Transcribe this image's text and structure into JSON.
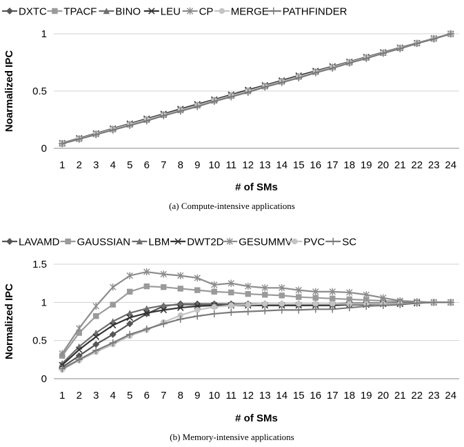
{
  "chart_data": [
    {
      "type": "line",
      "caption": "(a) Compute-intensive applications",
      "xlabel": "# of SMs",
      "ylabel": "Noarmalized IPC",
      "ylim": [
        0,
        1
      ],
      "yticks": [
        0,
        0.5,
        1
      ],
      "ytick_labels": [
        "0",
        "0.5",
        "1"
      ],
      "x": [
        1,
        2,
        3,
        4,
        5,
        6,
        7,
        8,
        9,
        10,
        11,
        12,
        13,
        14,
        15,
        16,
        17,
        18,
        19,
        20,
        21,
        22,
        23,
        24
      ],
      "grid": "horizontal",
      "legend_position": "top",
      "series": [
        {
          "name": "DXTC",
          "marker": "diamond",
          "color": "#555555",
          "values": [
            0.042,
            0.083,
            0.125,
            0.167,
            0.208,
            0.25,
            0.292,
            0.333,
            0.375,
            0.417,
            0.458,
            0.5,
            0.542,
            0.583,
            0.625,
            0.667,
            0.708,
            0.75,
            0.792,
            0.833,
            0.875,
            0.917,
            0.958,
            1.0
          ]
        },
        {
          "name": "TPACF",
          "marker": "square",
          "color": "#9a9a9a",
          "values": [
            0.042,
            0.083,
            0.125,
            0.167,
            0.208,
            0.25,
            0.292,
            0.333,
            0.375,
            0.417,
            0.458,
            0.5,
            0.542,
            0.583,
            0.625,
            0.667,
            0.708,
            0.75,
            0.792,
            0.833,
            0.875,
            0.917,
            0.958,
            1.0
          ]
        },
        {
          "name": "BINO",
          "marker": "triangle",
          "color": "#6e6e6e",
          "values": [
            0.042,
            0.083,
            0.125,
            0.167,
            0.208,
            0.25,
            0.292,
            0.333,
            0.375,
            0.417,
            0.458,
            0.5,
            0.542,
            0.583,
            0.625,
            0.667,
            0.708,
            0.75,
            0.792,
            0.833,
            0.875,
            0.917,
            0.958,
            1.0
          ]
        },
        {
          "name": "LEU",
          "marker": "x",
          "color": "#333333",
          "values": [
            0.045,
            0.088,
            0.13,
            0.172,
            0.215,
            0.258,
            0.3,
            0.343,
            0.385,
            0.425,
            0.468,
            0.51,
            0.55,
            0.592,
            0.635,
            0.675,
            0.715,
            0.755,
            0.797,
            0.838,
            0.879,
            0.919,
            0.96,
            1.0
          ]
        },
        {
          "name": "CP",
          "marker": "star",
          "color": "#8c8c8c",
          "values": [
            0.042,
            0.083,
            0.125,
            0.167,
            0.208,
            0.25,
            0.292,
            0.333,
            0.375,
            0.417,
            0.458,
            0.5,
            0.542,
            0.583,
            0.625,
            0.667,
            0.708,
            0.75,
            0.792,
            0.833,
            0.875,
            0.917,
            0.958,
            1.0
          ]
        },
        {
          "name": "MERGE",
          "marker": "circle",
          "color": "#c4c4c4",
          "values": [
            0.042,
            0.083,
            0.125,
            0.167,
            0.208,
            0.25,
            0.292,
            0.333,
            0.375,
            0.417,
            0.458,
            0.5,
            0.542,
            0.583,
            0.625,
            0.667,
            0.708,
            0.75,
            0.792,
            0.833,
            0.875,
            0.917,
            0.958,
            1.0
          ]
        },
        {
          "name": "PATHFINDER",
          "marker": "plus",
          "color": "#7a7a7a",
          "values": [
            0.04,
            0.08,
            0.12,
            0.16,
            0.2,
            0.24,
            0.285,
            0.325,
            0.365,
            0.41,
            0.45,
            0.49,
            0.535,
            0.575,
            0.615,
            0.66,
            0.7,
            0.745,
            0.785,
            0.83,
            0.87,
            0.915,
            0.955,
            1.0
          ]
        }
      ]
    },
    {
      "type": "line",
      "caption": "(b) Memory-intensive applications",
      "xlabel": "# of SMs",
      "ylabel": "Normalized IPC",
      "ylim": [
        0,
        1.5
      ],
      "yticks": [
        0,
        0.5,
        1,
        1.5
      ],
      "ytick_labels": [
        "0",
        "0.5",
        "1",
        "1.5"
      ],
      "x": [
        1,
        2,
        3,
        4,
        5,
        6,
        7,
        8,
        9,
        10,
        11,
        12,
        13,
        14,
        15,
        16,
        17,
        18,
        19,
        20,
        21,
        22,
        23,
        24
      ],
      "grid": "horizontal",
      "legend_position": "top",
      "series": [
        {
          "name": "LAVAMD",
          "marker": "diamond",
          "color": "#555555",
          "values": [
            0.15,
            0.3,
            0.45,
            0.58,
            0.72,
            0.85,
            0.95,
            0.98,
            0.98,
            0.98,
            0.98,
            0.98,
            0.98,
            0.98,
            0.98,
            0.98,
            0.98,
            0.98,
            0.99,
            0.99,
            0.99,
            1.0,
            1.0,
            1.0
          ]
        },
        {
          "name": "GAUSSIAN",
          "marker": "square",
          "color": "#9a9a9a",
          "values": [
            0.3,
            0.6,
            0.82,
            0.97,
            1.14,
            1.21,
            1.2,
            1.18,
            1.16,
            1.14,
            1.13,
            1.11,
            1.1,
            1.09,
            1.07,
            1.06,
            1.05,
            1.04,
            1.03,
            1.02,
            1.01,
            1.0,
            1.0,
            1.0
          ]
        },
        {
          "name": "LBM",
          "marker": "triangle",
          "color": "#6e6e6e",
          "values": [
            0.2,
            0.42,
            0.6,
            0.75,
            0.86,
            0.92,
            0.96,
            0.97,
            0.97,
            0.97,
            0.98,
            0.98,
            0.98,
            0.98,
            0.98,
            0.98,
            0.98,
            0.99,
            0.99,
            0.99,
            0.99,
            1.0,
            1.0,
            1.0
          ]
        },
        {
          "name": "DWT2D",
          "marker": "x",
          "color": "#333333",
          "values": [
            0.18,
            0.38,
            0.55,
            0.7,
            0.8,
            0.86,
            0.9,
            0.93,
            0.95,
            0.96,
            0.96,
            0.96,
            0.96,
            0.96,
            0.96,
            0.96,
            0.96,
            0.97,
            0.97,
            0.98,
            0.98,
            0.99,
            1.0,
            1.0
          ]
        },
        {
          "name": "GESUMMV",
          "marker": "star",
          "color": "#8c8c8c",
          "values": [
            0.33,
            0.66,
            0.95,
            1.2,
            1.35,
            1.4,
            1.37,
            1.35,
            1.32,
            1.23,
            1.25,
            1.21,
            1.19,
            1.19,
            1.16,
            1.14,
            1.14,
            1.13,
            1.1,
            1.06,
            1.02,
            1.01,
            1.0,
            1.0
          ]
        },
        {
          "name": "PVC",
          "marker": "circle",
          "color": "#c4c4c4",
          "values": [
            0.12,
            0.24,
            0.35,
            0.45,
            0.56,
            0.64,
            0.74,
            0.83,
            0.9,
            0.94,
            0.96,
            0.97,
            0.98,
            0.98,
            0.98,
            0.98,
            0.98,
            0.98,
            0.98,
            0.98,
            0.98,
            0.99,
            1.0,
            1.0
          ]
        },
        {
          "name": "SC",
          "marker": "plus",
          "color": "#7a7a7a",
          "values": [
            0.13,
            0.25,
            0.37,
            0.47,
            0.58,
            0.65,
            0.72,
            0.78,
            0.82,
            0.85,
            0.87,
            0.88,
            0.89,
            0.9,
            0.9,
            0.91,
            0.91,
            0.93,
            0.95,
            0.96,
            0.97,
            0.99,
            1.0,
            1.0
          ]
        }
      ]
    }
  ]
}
